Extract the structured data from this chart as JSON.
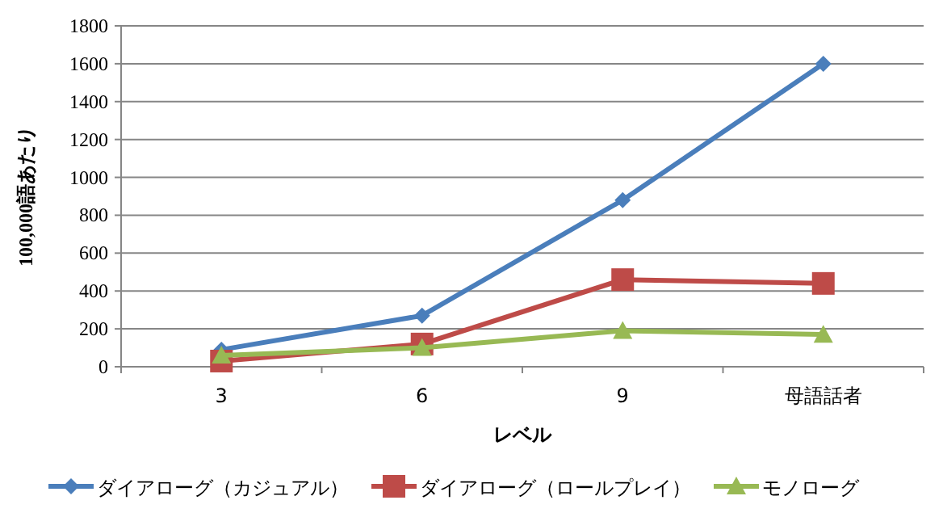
{
  "chart_data": {
    "type": "line",
    "xlabel": "レベル",
    "ylabel": "100,000語あたり",
    "categories": [
      "3",
      "6",
      "9",
      "母語話者"
    ],
    "series": [
      {
        "name": "ダイアローグ（カジュアル）",
        "color": "#4a7ebb",
        "marker": "diamond",
        "values": [
          90,
          270,
          880,
          1600
        ]
      },
      {
        "name": "ダイアローグ（ロールプレイ）",
        "color": "#be4b48",
        "marker": "square",
        "values": [
          30,
          120,
          460,
          440
        ]
      },
      {
        "name": "モノローグ",
        "color": "#98b954",
        "marker": "triangle",
        "values": [
          60,
          100,
          190,
          170
        ]
      }
    ],
    "ylim": [
      0,
      1800
    ],
    "yticks": [
      0,
      200,
      400,
      600,
      800,
      1000,
      1200,
      1400,
      1600,
      1800
    ],
    "grid": "y",
    "legend": "bottom",
    "line_style": "solid"
  }
}
